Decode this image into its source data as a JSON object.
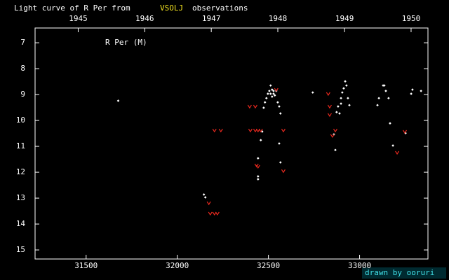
{
  "chart_data": {
    "type": "scatter",
    "title": "Light curve of R Per from",
    "source": "VSOLJ",
    "title_suffix": "observations",
    "label": "R Per (M)",
    "credit": "drawn by ooruri",
    "xlim": [
      31220,
      33375
    ],
    "xticks": [
      31500,
      32000,
      32500,
      33000
    ],
    "x2ticks": [
      {
        "value": 31456.5,
        "label": "1945"
      },
      {
        "value": 31821.5,
        "label": "1946"
      },
      {
        "value": 32186.5,
        "label": "1947"
      },
      {
        "value": 32551.5,
        "label": "1948"
      },
      {
        "value": 32917.5,
        "label": "1949"
      },
      {
        "value": 33282.5,
        "label": "1950"
      }
    ],
    "ylim": [
      6.43,
      15.35
    ],
    "y_inverted": true,
    "yticks": [
      7,
      8,
      9,
      10,
      11,
      12,
      13,
      14,
      15
    ],
    "series": [
      {
        "color": "#ffffff",
        "marker": "dot",
        "x": [
          31676,
          32146,
          32154,
          32443,
          32443,
          32443,
          32458,
          32466,
          32474,
          32481,
          32489,
          32497,
          32505,
          32512,
          32512,
          32520,
          32520,
          32528,
          32528,
          32535,
          32543,
          32551,
          32559,
          32566,
          32559,
          32566,
          32743,
          32859,
          32867,
          32874,
          32882,
          32890,
          32898,
          32898,
          32905,
          32913,
          32921,
          32928,
          32936,
          32944,
          33098,
          33106,
          33129,
          33136,
          33144,
          33159,
          33167,
          33183,
          33252,
          33283,
          33290,
          33337
        ],
        "values": [
          9.24,
          12.86,
          12.97,
          11.46,
          12.16,
          12.27,
          10.76,
          10.43,
          9.51,
          9.3,
          9.14,
          8.97,
          8.86,
          8.65,
          8.97,
          8.81,
          9.08,
          8.86,
          8.97,
          9.03,
          8.86,
          9.3,
          9.46,
          9.73,
          10.89,
          11.62,
          8.92,
          10.54,
          11.14,
          9.68,
          9.46,
          9.73,
          9.35,
          9.14,
          8.92,
          8.76,
          8.49,
          8.65,
          9.14,
          9.41,
          9.41,
          9.14,
          8.65,
          8.65,
          8.86,
          9.14,
          10.11,
          10.97,
          10.49,
          8.97,
          8.81,
          8.86
        ]
      },
      {
        "color": "#e8281e",
        "marker": "fainter",
        "x": [
          32173,
          32181,
          32204,
          32220,
          32204,
          32239,
          32397,
          32428,
          32401,
          32428,
          32443,
          32458,
          32435,
          32443,
          32543,
          32582,
          32582,
          32828,
          32836,
          32836,
          32851,
          32867,
          33206,
          33248
        ],
        "values": [
          13.19,
          13.59,
          13.59,
          13.59,
          10.38,
          10.38,
          9.46,
          9.46,
          10.38,
          10.38,
          10.38,
          10.38,
          11.73,
          11.78,
          8.81,
          10.38,
          11.95,
          8.97,
          9.46,
          9.78,
          10.59,
          10.38,
          11.24,
          10.43
        ]
      }
    ]
  }
}
